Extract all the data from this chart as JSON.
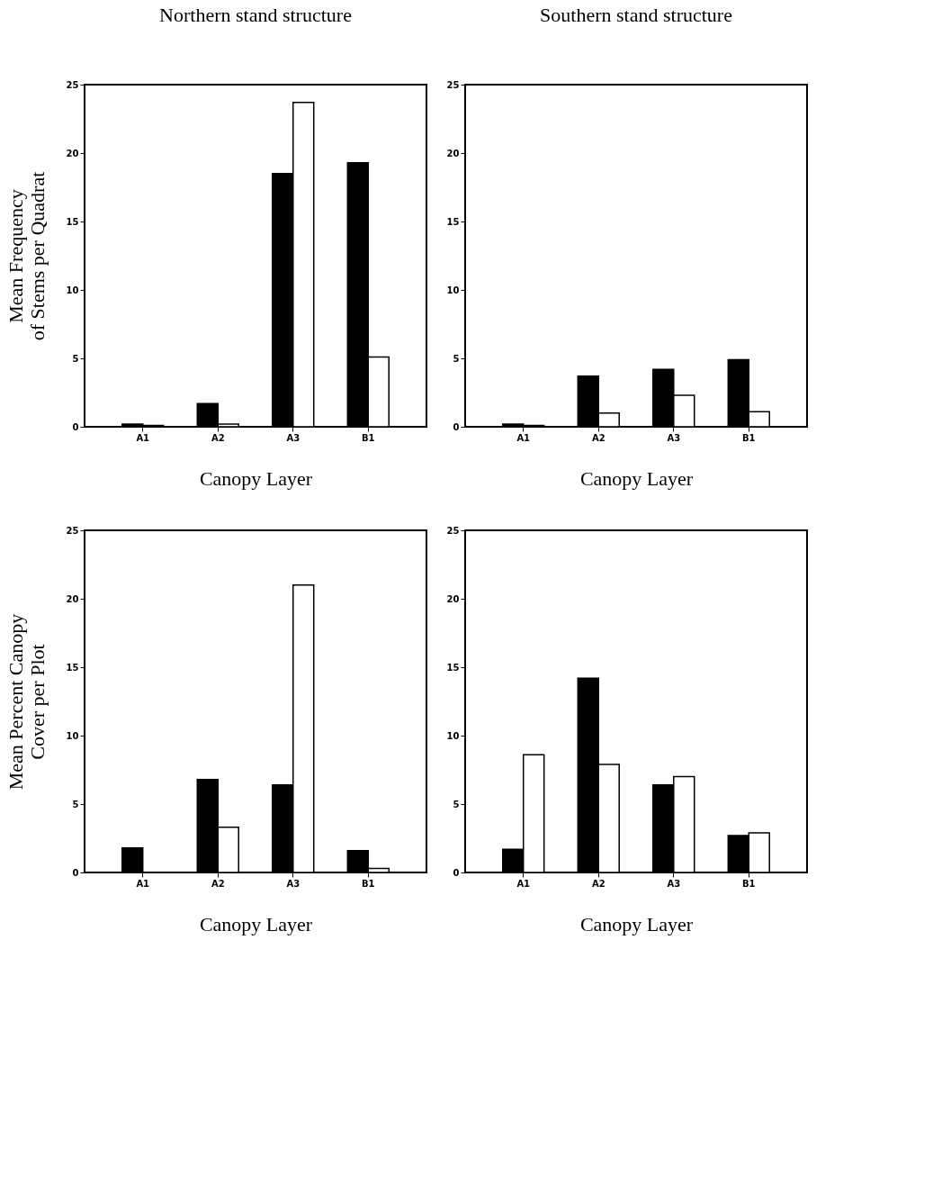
{
  "chart_data": [
    {
      "type": "bar",
      "title": "Northern stand structure",
      "xlabel": "Canopy Layer",
      "ylabel": "Mean Frequency\nof Stems per Quadrat",
      "categories": [
        "A1",
        "A2",
        "A3",
        "B1"
      ],
      "ylim": [
        0,
        25
      ],
      "yticks": [
        0,
        5,
        10,
        15,
        20,
        25
      ],
      "grid": false,
      "legend": false,
      "series": [
        {
          "color": "#000000",
          "values": [
            0.2,
            1.7,
            18.5,
            19.3
          ]
        },
        {
          "color": "#ffffff",
          "values": [
            0.1,
            0.2,
            23.7,
            5.1
          ]
        }
      ]
    },
    {
      "type": "bar",
      "title": "Southern stand structure",
      "xlabel": "Canopy Layer",
      "categories": [
        "A1",
        "A2",
        "A3",
        "B1"
      ],
      "ylim": [
        0,
        25
      ],
      "yticks": [
        0,
        5,
        10,
        15,
        20,
        25
      ],
      "grid": false,
      "legend": false,
      "series": [
        {
          "color": "#000000",
          "values": [
            0.2,
            3.7,
            4.2,
            4.9
          ]
        },
        {
          "color": "#ffffff",
          "values": [
            0.1,
            1.0,
            2.3,
            1.1
          ]
        }
      ]
    },
    {
      "type": "bar",
      "xlabel": "Canopy Layer",
      "ylabel": "Mean Percent Canopy\nCover per Plot",
      "categories": [
        "A1",
        "A2",
        "A3",
        "B1"
      ],
      "ylim": [
        0,
        25
      ],
      "yticks": [
        0,
        5,
        10,
        15,
        20,
        25
      ],
      "grid": false,
      "legend": false,
      "series": [
        {
          "color": "#000000",
          "values": [
            1.8,
            6.8,
            6.4,
            1.6
          ]
        },
        {
          "color": "#ffffff",
          "values": [
            null,
            3.3,
            21.0,
            0.3
          ]
        }
      ]
    },
    {
      "type": "bar",
      "xlabel": "Canopy Layer",
      "categories": [
        "A1",
        "A2",
        "A3",
        "B1"
      ],
      "ylim": [
        0,
        25
      ],
      "yticks": [
        0,
        5,
        10,
        15,
        20,
        25
      ],
      "grid": false,
      "legend": false,
      "series": [
        {
          "color": "#000000",
          "values": [
            1.7,
            14.2,
            6.4,
            2.7
          ]
        },
        {
          "color": "#ffffff",
          "values": [
            8.6,
            7.9,
            7.0,
            2.9
          ]
        }
      ]
    }
  ]
}
